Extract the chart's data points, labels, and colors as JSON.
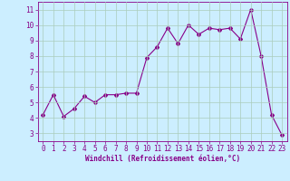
{
  "x": [
    0,
    1,
    2,
    3,
    4,
    5,
    6,
    7,
    8,
    9,
    10,
    11,
    12,
    13,
    14,
    15,
    16,
    17,
    18,
    19,
    20,
    21,
    22,
    23
  ],
  "y": [
    4.2,
    5.5,
    4.1,
    4.6,
    5.4,
    5.0,
    5.5,
    5.5,
    5.6,
    5.6,
    7.9,
    8.6,
    9.8,
    8.8,
    10.0,
    9.4,
    9.8,
    9.7,
    9.8,
    9.1,
    11.0,
    8.0,
    4.2,
    2.9
  ],
  "line_color": "#880088",
  "marker": "D",
  "marker_size": 2.0,
  "bg_color": "#cceeff",
  "grid_color": "#aaccbb",
  "xlabel": "Windchill (Refroidissement éolien,°C)",
  "xlabel_color": "#880088",
  "tick_color": "#880088",
  "spine_color": "#880088",
  "ylim": [
    2.5,
    11.5
  ],
  "xlim": [
    -0.5,
    23.5
  ],
  "yticks": [
    3,
    4,
    5,
    6,
    7,
    8,
    9,
    10,
    11
  ],
  "xticks": [
    0,
    1,
    2,
    3,
    4,
    5,
    6,
    7,
    8,
    9,
    10,
    11,
    12,
    13,
    14,
    15,
    16,
    17,
    18,
    19,
    20,
    21,
    22,
    23
  ],
  "tick_fontsize": 5.5,
  "xlabel_fontsize": 5.5,
  "linewidth": 0.8
}
